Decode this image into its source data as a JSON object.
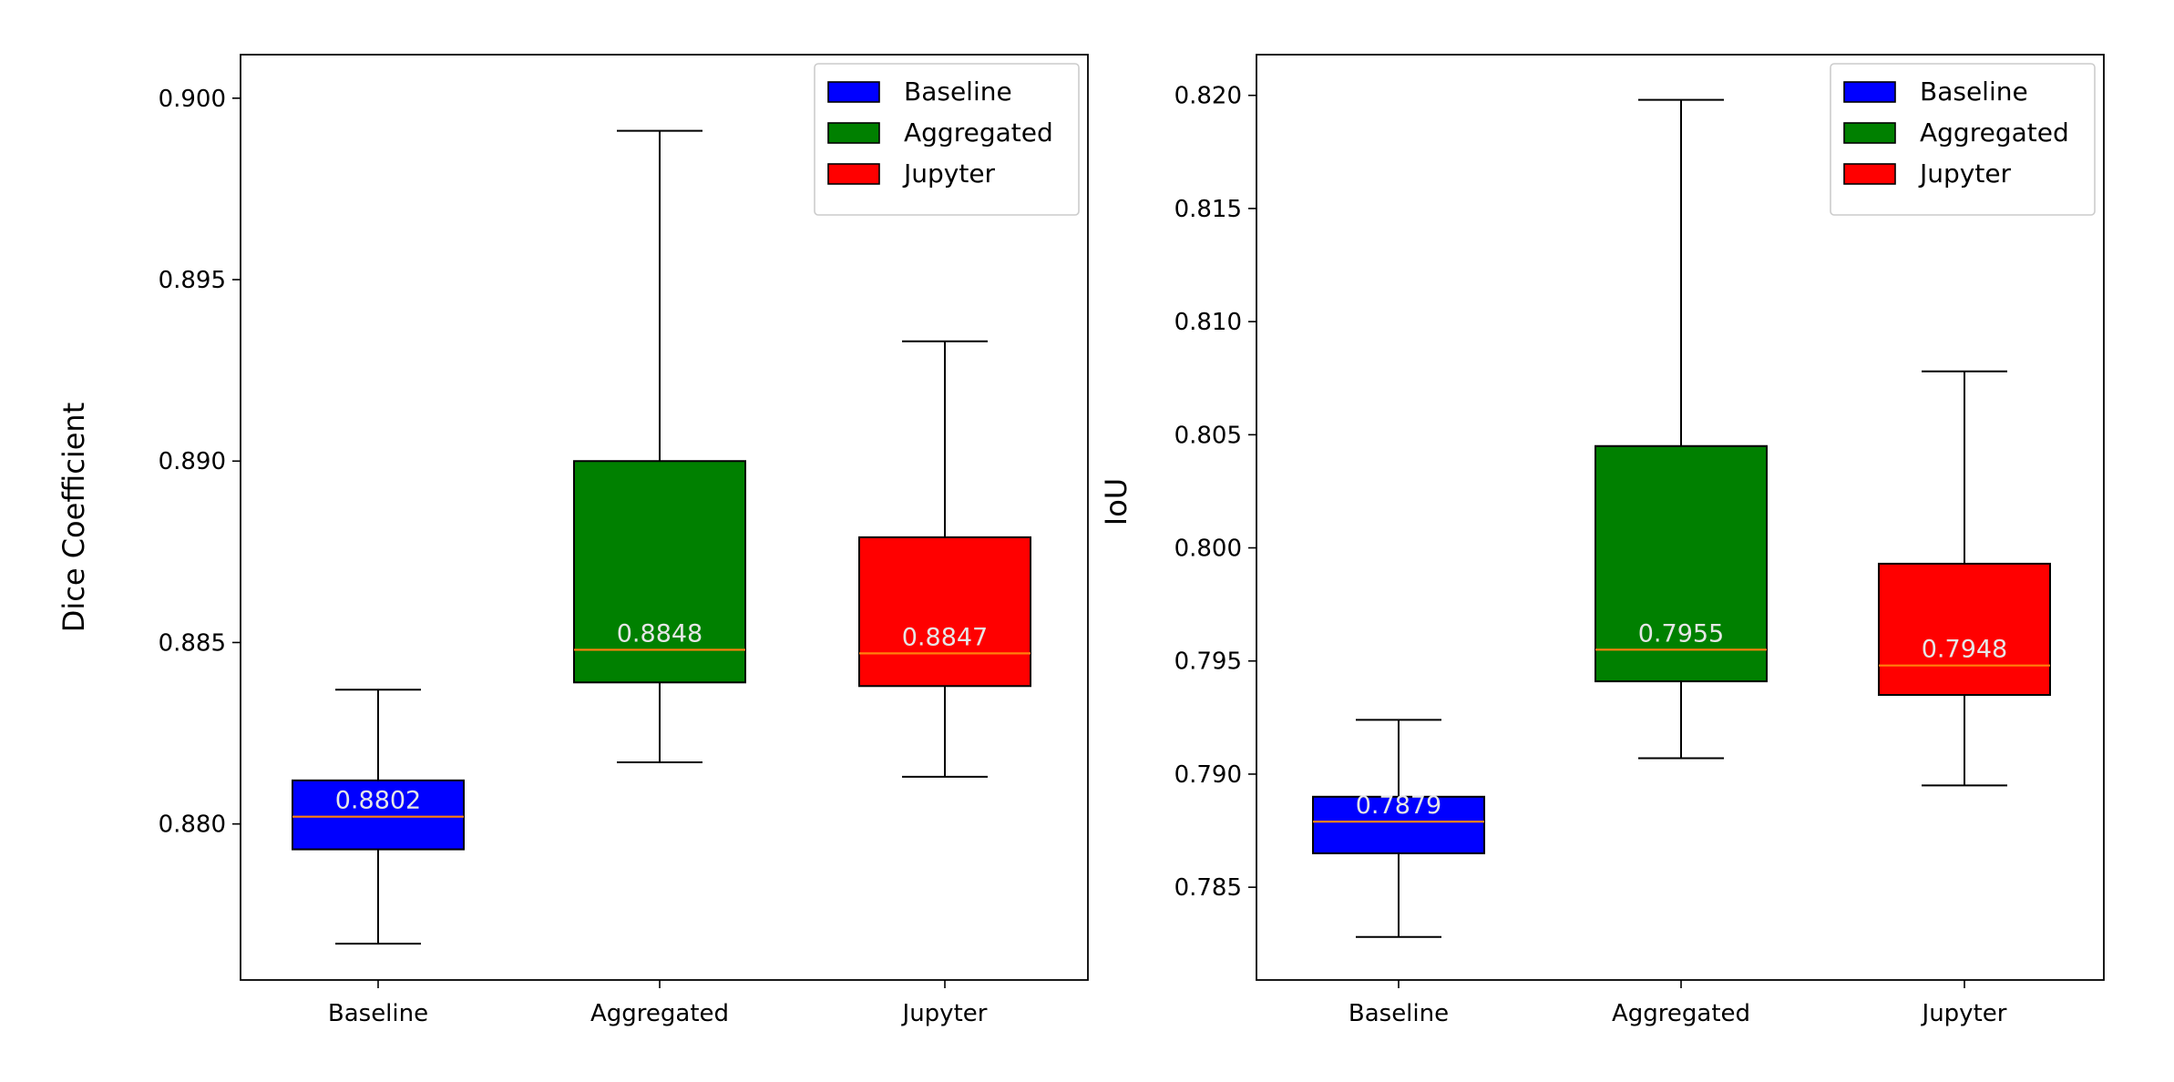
{
  "chart_data": [
    {
      "type": "box",
      "title": "",
      "xlabel": "",
      "ylabel": "Dice Coefficient",
      "ylim": [
        0.8757,
        0.9012
      ],
      "yticks": [
        0.88,
        0.885,
        0.89,
        0.895,
        0.9
      ],
      "ytick_labels": [
        "0.880",
        "0.885",
        "0.890",
        "0.895",
        "0.900"
      ],
      "categories": [
        "Baseline",
        "Aggregated",
        "Jupyter"
      ],
      "grid": false,
      "legend_position": "top-right",
      "legend": [
        "Baseline",
        "Aggregated",
        "Jupyter"
      ],
      "series": [
        {
          "name": "Baseline",
          "color": "#0000ff",
          "whisker_low": 0.8767,
          "q1": 0.8793,
          "median": 0.8802,
          "q3": 0.8812,
          "whisker_high": 0.8837,
          "median_label": "0.8802"
        },
        {
          "name": "Aggregated",
          "color": "#008000",
          "whisker_low": 0.8817,
          "q1": 0.8839,
          "median": 0.8848,
          "q3": 0.89,
          "whisker_high": 0.8991,
          "median_label": "0.8848"
        },
        {
          "name": "Jupyter",
          "color": "#ff0000",
          "whisker_low": 0.8813,
          "q1": 0.8838,
          "median": 0.8847,
          "q3": 0.8879,
          "whisker_high": 0.8933,
          "median_label": "0.8847"
        }
      ]
    },
    {
      "type": "box",
      "title": "",
      "xlabel": "",
      "ylabel": "IoU",
      "ylim": [
        0.7809,
        0.8218
      ],
      "yticks": [
        0.785,
        0.79,
        0.795,
        0.8,
        0.805,
        0.81,
        0.815,
        0.82
      ],
      "ytick_labels": [
        "0.785",
        "0.790",
        "0.795",
        "0.800",
        "0.805",
        "0.810",
        "0.815",
        "0.820"
      ],
      "categories": [
        "Baseline",
        "Aggregated",
        "Jupyter"
      ],
      "grid": false,
      "legend_position": "top-right",
      "legend": [
        "Baseline",
        "Aggregated",
        "Jupyter"
      ],
      "series": [
        {
          "name": "Baseline",
          "color": "#0000ff",
          "whisker_low": 0.7828,
          "q1": 0.7865,
          "median": 0.7879,
          "q3": 0.789,
          "whisker_high": 0.7924,
          "median_label": "0.7879"
        },
        {
          "name": "Aggregated",
          "color": "#008000",
          "whisker_low": 0.7907,
          "q1": 0.7941,
          "median": 0.7955,
          "q3": 0.8045,
          "whisker_high": 0.8198,
          "median_label": "0.7955"
        },
        {
          "name": "Jupyter",
          "color": "#ff0000",
          "whisker_low": 0.7895,
          "q1": 0.7935,
          "median": 0.7948,
          "q3": 0.7993,
          "whisker_high": 0.8078,
          "median_label": "0.7948"
        }
      ]
    }
  ],
  "colors": {
    "median_line": "#ff7f0e",
    "median_text": "#e6e6e6",
    "axis": "#000000"
  }
}
